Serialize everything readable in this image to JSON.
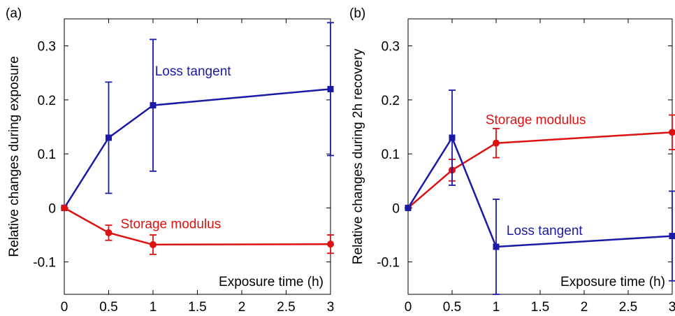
{
  "chart_data": [
    {
      "type": "line",
      "panel_label": "(a)",
      "xlabel": "Exposure time (h)",
      "ylabel": "Relative changes during exposure",
      "xlim": [
        0,
        3
      ],
      "ylim": [
        -0.16,
        0.35
      ],
      "x_ticks": [
        0,
        0.5,
        1,
        1.5,
        2,
        2.5,
        3
      ],
      "y_ticks": [
        -0.1,
        0,
        0.1,
        0.2,
        0.3
      ],
      "x_tick_labels": [
        "0",
        "0.5",
        "1",
        "1.5",
        "2",
        "2.5",
        "3"
      ],
      "y_tick_labels": [
        "-0.1",
        "0",
        "0.1",
        "0.2",
        "0.3"
      ],
      "series": [
        {
          "name": "Loss tangent",
          "color": "#1a1aa6",
          "marker": "square",
          "x": [
            0,
            0.5,
            1,
            3
          ],
          "y": [
            0,
            0.13,
            0.19,
            0.22
          ],
          "err": [
            0,
            0.103,
            0.122,
            0.123
          ]
        },
        {
          "name": "Storage modulus",
          "color": "#dd1111",
          "marker": "circle",
          "x": [
            0,
            0.5,
            1,
            3
          ],
          "y": [
            0,
            -0.046,
            -0.068,
            -0.067
          ],
          "err": [
            0,
            0.014,
            0.018,
            0.017
          ]
        }
      ],
      "annotations": [
        {
          "text": "Loss tangent",
          "x": 1.45,
          "y": 0.245,
          "color": "#1a1aa6"
        },
        {
          "text": "Storage modulus",
          "x": 1.2,
          "y": -0.038,
          "color": "#dd1111"
        }
      ]
    },
    {
      "type": "line",
      "panel_label": "(b)",
      "xlabel": "Exposure time (h)",
      "ylabel": "Relative changes during 2h recovery",
      "xlim": [
        0,
        3
      ],
      "ylim": [
        -0.16,
        0.35
      ],
      "x_ticks": [
        0,
        0.5,
        1,
        1.5,
        2,
        2.5,
        3
      ],
      "y_ticks": [
        -0.1,
        0,
        0.1,
        0.2,
        0.3
      ],
      "x_tick_labels": [
        "0",
        "0.5",
        "1",
        "1.5",
        "2",
        "2.5",
        "3"
      ],
      "y_tick_labels": [
        "-0.1",
        "0",
        "0.1",
        "0.2",
        "0.3"
      ],
      "series": [
        {
          "name": "Storage modulus",
          "color": "#dd1111",
          "marker": "circle",
          "x": [
            0,
            0.5,
            1,
            3
          ],
          "y": [
            0,
            0.07,
            0.12,
            0.14
          ],
          "err": [
            0,
            0.02,
            0.027,
            0.032
          ]
        },
        {
          "name": "Loss tangent",
          "color": "#1a1aa6",
          "marker": "square",
          "x": [
            0,
            0.5,
            1,
            3
          ],
          "y": [
            0,
            0.13,
            -0.072,
            -0.052
          ],
          "err": [
            0,
            0.088,
            0.088,
            0.083
          ]
        }
      ],
      "annotations": [
        {
          "text": "Storage modulus",
          "x": 1.45,
          "y": 0.155,
          "color": "#dd1111"
        },
        {
          "text": "Loss tangent",
          "x": 1.55,
          "y": -0.05,
          "color": "#1a1aa6"
        }
      ]
    }
  ]
}
